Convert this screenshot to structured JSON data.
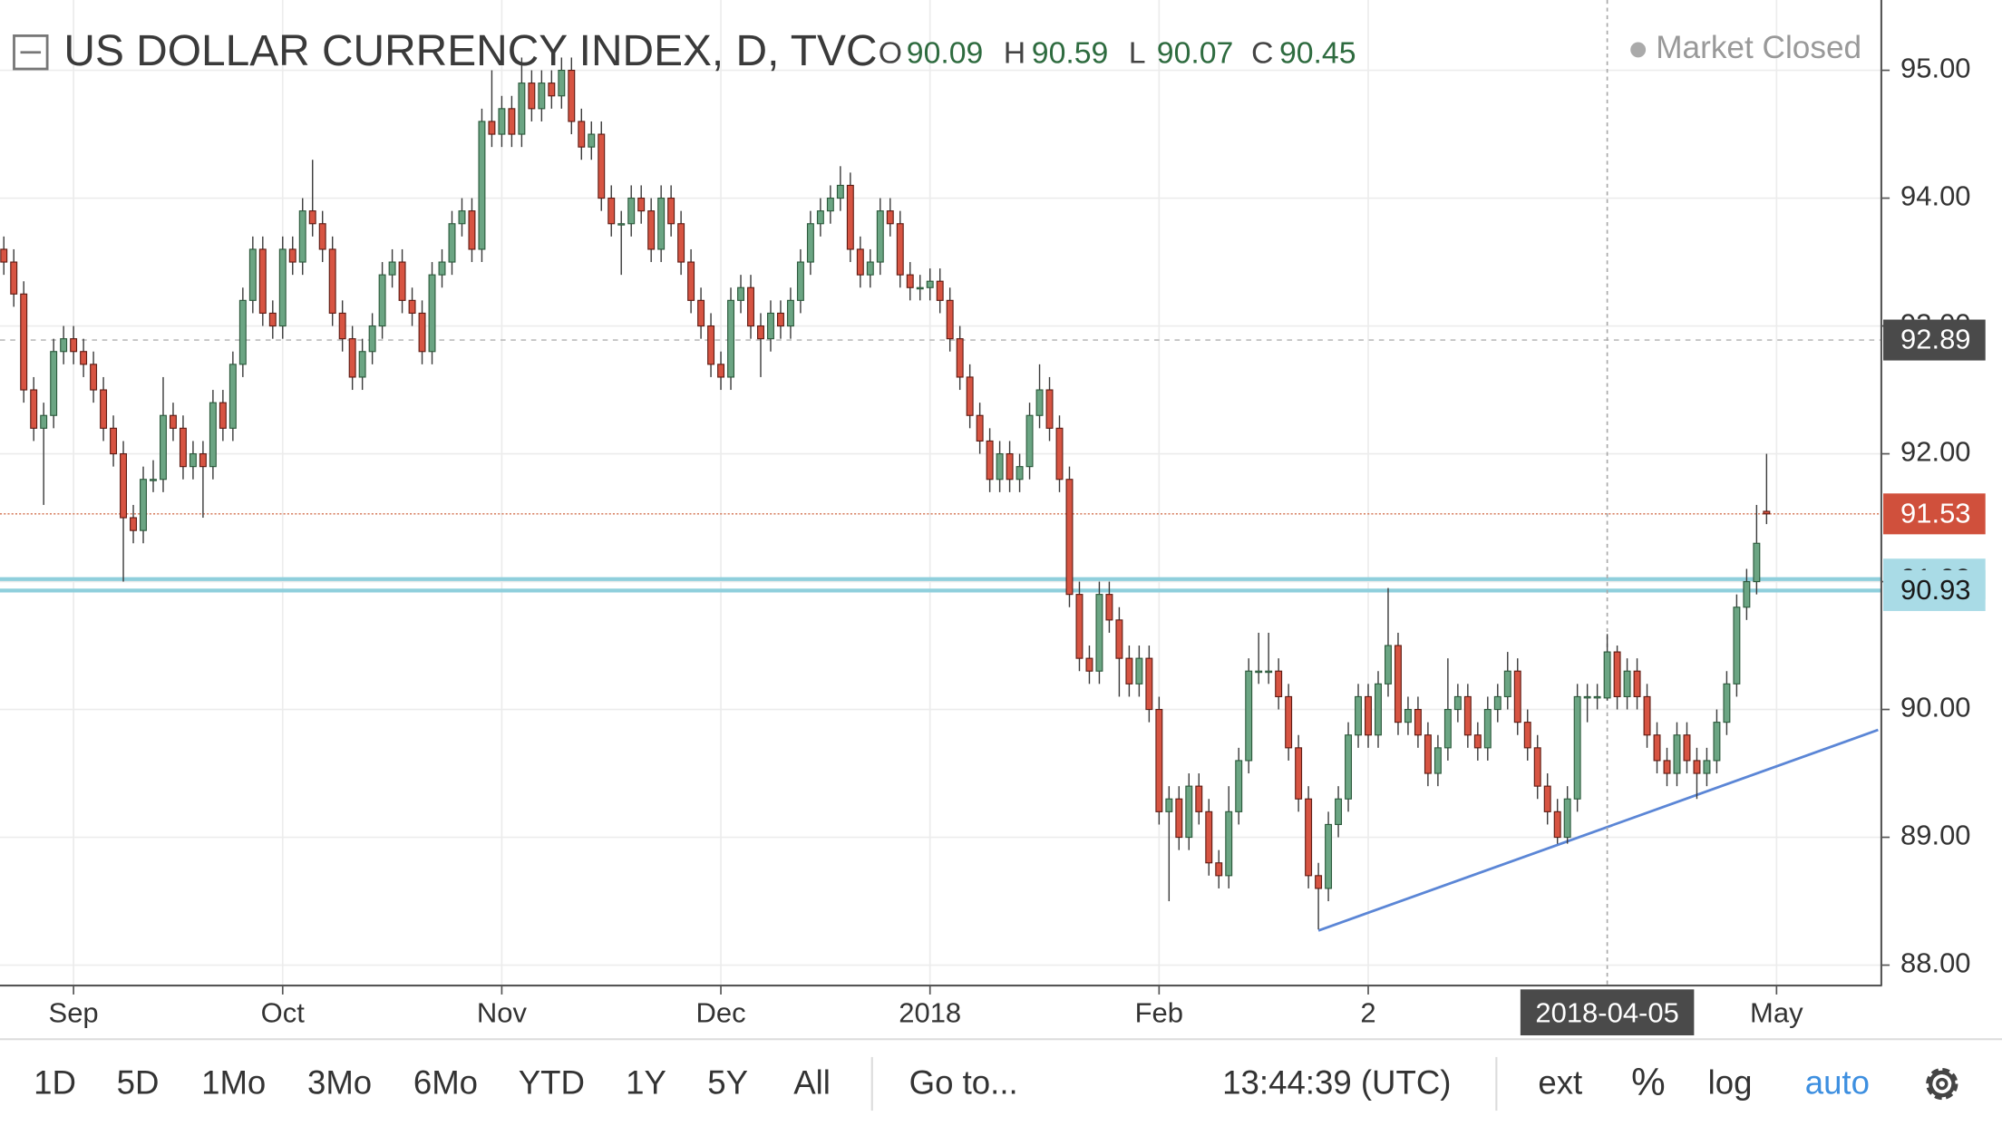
{
  "chart_data": {
    "type": "candlestick",
    "title": "US DOLLAR CURRENCY INDEX, D, TVC",
    "status": "Market Closed",
    "ohlc_labels": [
      "O",
      "H",
      "L",
      "C"
    ],
    "up_color": "#6ba583",
    "down_color": "#d75442",
    "open": [
      93.6,
      93.5,
      93.25,
      92.5,
      92.2,
      92.3,
      92.8,
      92.9,
      92.8,
      92.7,
      92.5,
      92.2,
      92.0,
      91.5,
      91.4,
      91.8,
      91.8,
      92.3,
      92.2,
      91.9,
      92.0,
      91.9,
      92.4,
      92.2,
      92.7,
      93.2,
      93.6,
      93.1,
      93.0,
      93.6,
      93.5,
      93.9,
      93.8,
      93.6,
      93.1,
      92.9,
      92.6,
      92.8,
      93.0,
      93.4,
      93.5,
      93.2,
      93.1,
      92.8,
      93.4,
      93.5,
      93.8,
      93.9,
      93.6,
      94.6,
      94.5,
      94.7,
      94.5,
      94.9,
      94.7,
      94.9,
      94.8,
      95.0,
      94.6,
      94.4,
      94.5,
      94.0,
      93.8,
      93.8,
      94.0,
      93.9,
      93.6,
      94.0,
      93.8,
      93.5,
      93.2,
      93.0,
      92.7,
      92.6,
      93.2,
      93.3,
      93.0,
      92.9,
      93.1,
      93.0,
      93.2,
      93.5,
      93.8,
      93.9,
      94.0,
      94.1,
      93.6,
      93.4,
      93.5,
      93.9,
      93.8,
      93.4,
      93.3,
      93.3,
      93.35,
      93.2,
      92.9,
      92.6,
      92.3,
      92.1,
      91.8,
      92.0,
      91.8,
      91.9,
      92.3,
      92.5,
      92.2,
      91.8,
      90.9,
      90.4,
      90.3,
      90.9,
      90.7,
      90.4,
      90.2,
      90.4,
      90.0,
      89.2,
      89.3,
      89.0,
      89.4,
      89.2,
      88.8,
      88.7,
      89.2,
      89.6,
      90.3,
      90.3,
      90.3,
      90.1,
      89.7,
      89.3,
      88.7,
      88.6,
      89.1,
      89.3,
      89.8,
      90.1,
      89.8,
      90.2,
      90.5,
      89.9,
      90.0,
      89.8,
      89.5,
      89.7,
      90.0,
      90.1,
      89.8,
      89.7,
      90.0,
      90.1,
      90.3,
      89.9,
      89.7,
      89.4,
      89.2,
      89.0,
      89.3,
      90.1,
      90.1,
      90.09,
      90.45,
      90.1,
      90.3,
      90.1,
      89.8,
      89.6,
      89.5,
      89.8,
      89.6,
      89.5,
      89.6,
      89.9,
      90.2,
      90.8,
      91.0,
      91.55
    ],
    "high": [
      93.7,
      93.6,
      93.35,
      92.6,
      92.4,
      92.9,
      93.0,
      93.0,
      92.9,
      92.8,
      92.6,
      92.3,
      92.1,
      91.6,
      91.9,
      91.95,
      92.6,
      92.4,
      92.3,
      92.1,
      92.1,
      92.5,
      92.5,
      92.8,
      93.3,
      93.7,
      93.7,
      93.2,
      93.7,
      93.7,
      94.0,
      94.3,
      93.9,
      93.7,
      93.2,
      93.0,
      92.9,
      93.1,
      93.5,
      93.6,
      93.6,
      93.3,
      93.2,
      93.5,
      93.6,
      93.9,
      94.0,
      94.0,
      94.7,
      95.0,
      94.8,
      94.8,
      95.1,
      95.0,
      95.0,
      95.0,
      95.1,
      95.1,
      94.7,
      94.6,
      94.6,
      94.1,
      93.9,
      94.1,
      94.1,
      94.0,
      94.1,
      94.1,
      93.9,
      93.6,
      93.3,
      93.1,
      92.8,
      93.3,
      93.4,
      93.4,
      93.1,
      93.2,
      93.2,
      93.3,
      93.6,
      93.9,
      94.0,
      94.1,
      94.25,
      94.2,
      93.7,
      93.6,
      94.0,
      94.0,
      93.9,
      93.5,
      93.4,
      93.45,
      93.45,
      93.3,
      93.0,
      92.7,
      92.4,
      92.2,
      92.1,
      92.1,
      92.0,
      92.4,
      92.7,
      92.6,
      92.3,
      91.9,
      91.0,
      90.5,
      91.0,
      91.0,
      90.8,
      90.5,
      90.5,
      90.5,
      90.1,
      89.4,
      89.4,
      89.5,
      89.5,
      89.3,
      88.9,
      89.4,
      89.7,
      90.4,
      90.6,
      90.6,
      90.4,
      90.2,
      89.8,
      89.4,
      88.8,
      89.2,
      89.4,
      89.9,
      90.2,
      90.2,
      90.3,
      90.95,
      90.6,
      90.1,
      90.1,
      89.9,
      89.8,
      90.4,
      90.2,
      90.2,
      89.9,
      90.1,
      90.2,
      90.45,
      90.4,
      90.0,
      89.8,
      89.5,
      89.3,
      89.4,
      90.2,
      90.2,
      90.2,
      90.59,
      90.5,
      90.4,
      90.4,
      90.2,
      89.9,
      89.7,
      89.9,
      89.9,
      89.7,
      89.7,
      90.0,
      90.3,
      90.9,
      91.1,
      91.6,
      92.0
    ],
    "low": [
      93.4,
      93.15,
      92.4,
      92.1,
      91.6,
      92.2,
      92.7,
      92.7,
      92.6,
      92.4,
      92.1,
      91.9,
      91.0,
      91.3,
      91.3,
      91.7,
      91.7,
      92.1,
      91.8,
      91.8,
      91.5,
      91.8,
      92.1,
      92.1,
      92.6,
      93.1,
      93.0,
      92.9,
      92.9,
      93.4,
      93.4,
      93.7,
      93.5,
      93.0,
      92.8,
      92.5,
      92.5,
      92.7,
      92.9,
      93.3,
      93.1,
      93.0,
      92.7,
      92.7,
      93.3,
      93.4,
      93.7,
      93.5,
      93.5,
      94.4,
      94.4,
      94.4,
      94.4,
      94.6,
      94.6,
      94.7,
      94.7,
      94.5,
      94.3,
      94.3,
      93.9,
      93.7,
      93.4,
      93.7,
      93.8,
      93.5,
      93.5,
      93.7,
      93.4,
      93.1,
      92.9,
      92.6,
      92.5,
      92.5,
      93.1,
      92.9,
      92.6,
      92.8,
      92.9,
      92.9,
      93.1,
      93.4,
      93.7,
      93.8,
      93.9,
      93.5,
      93.3,
      93.3,
      93.4,
      93.7,
      93.3,
      93.2,
      93.2,
      93.2,
      93.1,
      92.8,
      92.5,
      92.2,
      92.0,
      91.7,
      91.7,
      91.7,
      91.7,
      91.8,
      92.2,
      92.1,
      91.7,
      90.8,
      90.3,
      90.2,
      90.2,
      90.6,
      90.1,
      90.1,
      90.1,
      89.9,
      89.1,
      88.5,
      88.9,
      88.9,
      89.1,
      88.7,
      88.6,
      88.6,
      89.1,
      89.5,
      90.2,
      90.2,
      90.0,
      89.6,
      89.2,
      88.6,
      88.28,
      88.5,
      89.0,
      89.2,
      89.7,
      89.7,
      89.7,
      90.1,
      89.8,
      89.8,
      89.7,
      89.4,
      89.4,
      89.6,
      89.9,
      89.7,
      89.6,
      89.6,
      89.9,
      90.0,
      89.8,
      89.6,
      89.3,
      89.1,
      88.95,
      88.95,
      89.2,
      89.9,
      90.0,
      90.07,
      90.0,
      90.0,
      90.0,
      89.7,
      89.5,
      89.4,
      89.4,
      89.5,
      89.3,
      89.4,
      89.5,
      89.8,
      90.1,
      90.7,
      90.9,
      91.45
    ],
    "close": [
      93.5,
      93.25,
      92.5,
      92.2,
      92.3,
      92.8,
      92.9,
      92.8,
      92.7,
      92.5,
      92.2,
      92.0,
      91.5,
      91.4,
      91.8,
      91.8,
      92.3,
      92.2,
      91.9,
      92.0,
      91.9,
      92.4,
      92.2,
      92.7,
      93.2,
      93.6,
      93.1,
      93.0,
      93.6,
      93.5,
      93.9,
      93.8,
      93.6,
      93.1,
      92.9,
      92.6,
      92.8,
      93.0,
      93.4,
      93.5,
      93.2,
      93.1,
      92.8,
      93.4,
      93.5,
      93.8,
      93.9,
      93.6,
      94.6,
      94.5,
      94.7,
      94.5,
      94.9,
      94.7,
      94.9,
      94.8,
      95.0,
      94.6,
      94.4,
      94.5,
      94.0,
      93.8,
      93.8,
      94.0,
      93.9,
      93.6,
      94.0,
      93.8,
      93.5,
      93.2,
      93.0,
      92.7,
      92.6,
      93.2,
      93.3,
      93.0,
      92.9,
      93.1,
      93.0,
      93.2,
      93.5,
      93.8,
      93.9,
      94.0,
      94.1,
      93.6,
      93.4,
      93.5,
      93.9,
      93.8,
      93.4,
      93.3,
      93.3,
      93.35,
      93.2,
      92.9,
      92.6,
      92.3,
      92.1,
      91.8,
      92.0,
      91.8,
      91.9,
      92.3,
      92.5,
      92.2,
      91.8,
      90.9,
      90.4,
      90.3,
      90.9,
      90.7,
      90.4,
      90.2,
      90.4,
      90.0,
      89.2,
      89.3,
      89.0,
      89.4,
      89.2,
      88.8,
      88.7,
      89.2,
      89.6,
      90.3,
      90.3,
      90.3,
      90.1,
      89.7,
      89.3,
      88.7,
      88.6,
      89.1,
      89.3,
      89.8,
      90.1,
      89.8,
      90.2,
      90.5,
      89.9,
      90.0,
      89.8,
      89.5,
      89.7,
      90.0,
      90.1,
      89.8,
      89.7,
      90.0,
      90.1,
      90.3,
      89.9,
      89.7,
      89.4,
      89.2,
      89.0,
      89.3,
      90.1,
      90.1,
      90.1,
      90.45,
      90.1,
      90.3,
      90.1,
      89.8,
      89.6,
      89.5,
      89.8,
      89.6,
      89.5,
      89.6,
      89.9,
      90.2,
      90.8,
      91.0,
      91.3,
      91.53
    ],
    "xlim": [
      -0.385,
      188.46
    ],
    "xticks": [
      {
        "value": 7,
        "label": "Sep"
      },
      {
        "value": 28,
        "label": "Oct"
      },
      {
        "value": 50,
        "label": "Nov"
      },
      {
        "value": 72,
        "label": "Dec"
      },
      {
        "value": 93,
        "label": "2018"
      },
      {
        "value": 116,
        "label": "Feb"
      },
      {
        "value": 137,
        "label": "2"
      },
      {
        "value": 178,
        "label": "May"
      }
    ],
    "ylim": [
      87.84,
      95.55
    ],
    "yticks": [
      {
        "value": 88,
        "label": "88.00"
      },
      {
        "value": 89,
        "label": "89.00"
      },
      {
        "value": 90,
        "label": "90.00"
      },
      {
        "value": 91,
        "label": "91.00"
      },
      {
        "value": 92,
        "label": "92.00"
      },
      {
        "value": 93,
        "label": "93.00"
      },
      {
        "value": 94,
        "label": "94.00"
      },
      {
        "value": 95,
        "label": "95.00"
      }
    ],
    "grid": true,
    "log_scale": false,
    "previous_close": 92.89,
    "support_lines": [
      91.02,
      90.93
    ],
    "support_color": "#8fcfdc",
    "trendline": {
      "x": [
        132,
        188.2
      ],
      "y": [
        88.27,
        89.84
      ],
      "color": "#5b86d6"
    },
    "crosshair": {
      "x": 161,
      "label": "2018-04-05"
    }
  },
  "toolbar": {
    "ranges": [
      "1D",
      "5D",
      "1Mo",
      "3Mo",
      "6Mo",
      "YTD",
      "1Y",
      "5Y",
      "All"
    ],
    "goto": "Go to...",
    "clock": "13:44:39 (UTC)",
    "options": [
      "ext",
      "%",
      "log",
      "auto"
    ]
  }
}
